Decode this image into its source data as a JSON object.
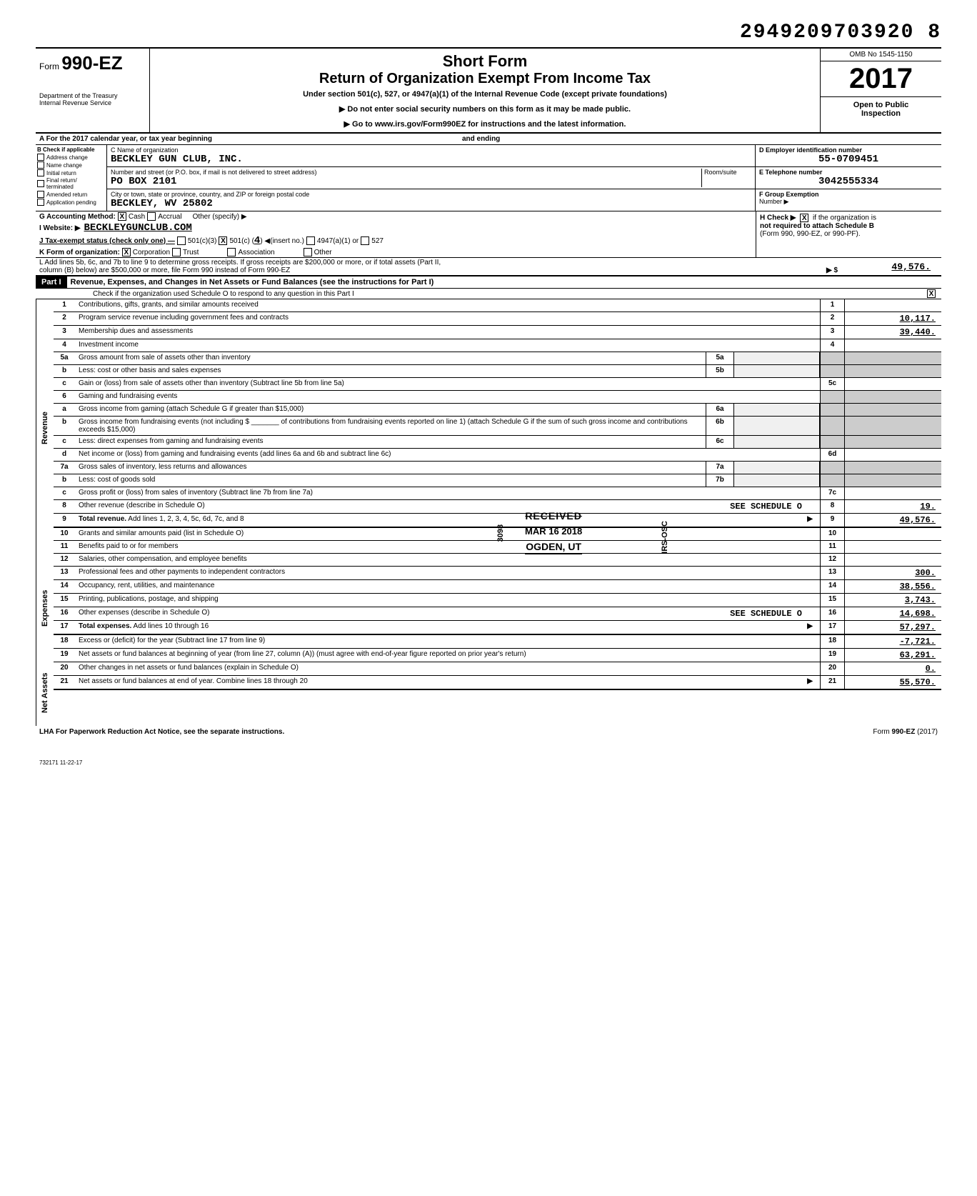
{
  "header": {
    "topNumber": "2949209703920  8",
    "formPrefix": "Form",
    "formNumber": "990-EZ",
    "dept1": "Department of the Treasury",
    "dept2": "Internal Revenue Service",
    "title1": "Short Form",
    "title2": "Return of Organization Exempt From Income Tax",
    "subtitle": "Under section 501(c), 527, or 4947(a)(1) of the Internal Revenue Code (except private foundations)",
    "instr1": "▶ Do not enter social security numbers on this form as it may be made public.",
    "instr2": "▶ Go to www.irs.gov/Form990EZ for instructions and the latest information.",
    "omb": "OMB No 1545-1150",
    "year": "2017",
    "public1": "Open to Public",
    "public2": "Inspection"
  },
  "sectionA": {
    "label": "A  For the 2017 calendar year, or tax year beginning",
    "ending": "and ending"
  },
  "sectionB": {
    "header": "B  Check if applicable",
    "items": [
      "Address change",
      "Name change",
      "Initial return",
      "Final return/ terminated",
      "Amended return",
      "Application pending"
    ]
  },
  "sectionC": {
    "nameLabel": "C Name of organization",
    "name": "BECKLEY GUN CLUB, INC.",
    "streetLabel": "Number and street (or P.O. box, if mail is not delivered to street address)",
    "roomLabel": "Room/suite",
    "street": "PO BOX 2101",
    "cityLabel": "City or town, state or province, country, and ZIP or foreign postal code",
    "city": "BECKLEY, WV  25802"
  },
  "sectionD": {
    "einLabel": "D Employer identification number",
    "ein": "55-0709451",
    "phoneLabel": "E Telephone number",
    "phone": "3042555334",
    "groupLabel": "F Group Exemption",
    "numberLabel": "Number ▶"
  },
  "lineG": {
    "label": "G  Accounting Method:",
    "cash": "Cash",
    "accrual": "Accrual",
    "other": "Other (specify) ▶"
  },
  "lineH": {
    "label": "H Check ▶",
    "text1": "if the organization is",
    "text2": "not required to attach Schedule B",
    "text3": "(Form 990, 990-EZ, or 990-PF)."
  },
  "lineI": {
    "label": "I   Website: ▶",
    "value": "BECKLEYGUNCLUB.COM"
  },
  "lineJ": {
    "label": "J   Tax-exempt status (check only one) —",
    "opt1": "501(c)(3)",
    "opt2": "501(c) (",
    "insertNum": "4",
    "insert": ") ◀(insert no.)",
    "opt3": "4947(a)(1) or",
    "opt4": "527"
  },
  "lineK": {
    "label": "K  Form of organization:",
    "corp": "Corporation",
    "trust": "Trust",
    "assoc": "Association",
    "other": "Other"
  },
  "lineL": {
    "text": "L  Add lines 5b, 6c, and 7b to line 9 to determine gross receipts. If gross receipts are $200,000 or more, or if total assets (Part II,",
    "text2": "column (B) below) are $500,000 or more, file Form 990 instead of Form 990-EZ",
    "arrow": "▶ $",
    "amount": "49,576."
  },
  "partI": {
    "label": "Part I",
    "title": "Revenue, Expenses, and Changes in Net Assets or Fund Balances (see the instructions for Part I)",
    "check": "Check if the organization used Schedule O to respond to any question in this Part I"
  },
  "revenue": {
    "sideLabel": "Revenue",
    "lines": [
      {
        "num": "1",
        "desc": "Contributions, gifts, grants, and similar amounts received",
        "box": "1",
        "val": ""
      },
      {
        "num": "2",
        "desc": "Program service revenue including government fees and contracts",
        "box": "2",
        "val": "10,117."
      },
      {
        "num": "3",
        "desc": "Membership dues and assessments",
        "box": "3",
        "val": "39,440."
      },
      {
        "num": "4",
        "desc": "Investment income",
        "box": "4",
        "val": ""
      },
      {
        "num": "5a",
        "desc": "Gross amount from sale of assets other than inventory",
        "mid": "5a"
      },
      {
        "num": "b",
        "desc": "Less: cost or other basis and sales expenses",
        "mid": "5b"
      },
      {
        "num": "c",
        "desc": "Gain or (loss) from sale of assets other than inventory (Subtract line 5b from line 5a)",
        "box": "5c",
        "val": ""
      },
      {
        "num": "6",
        "desc": "Gaming and fundraising events"
      },
      {
        "num": "a",
        "desc": "Gross income from gaming (attach Schedule G if greater than $15,000)",
        "mid": "6a"
      },
      {
        "num": "b",
        "desc": "Gross income from fundraising events (not including $ _______ of contributions from fundraising events reported on line 1) (attach Schedule G if the sum of such gross income and contributions exceeds $15,000)",
        "mid": "6b"
      },
      {
        "num": "c",
        "desc": "Less: direct expenses from gaming and fundraising events",
        "mid": "6c"
      },
      {
        "num": "d",
        "desc": "Net income or (loss) from gaming and fundraising events (add lines 6a and 6b and subtract line 6c)",
        "box": "6d",
        "val": ""
      },
      {
        "num": "7a",
        "desc": "Gross sales of inventory, less returns and allowances",
        "mid": "7a"
      },
      {
        "num": "b",
        "desc": "Less: cost of goods sold",
        "mid": "7b"
      },
      {
        "num": "c",
        "desc": "Gross profit or (loss) from sales of inventory (Subtract line 7b from line 7a)",
        "box": "7c",
        "val": ""
      },
      {
        "num": "8",
        "desc": "Other revenue (describe in Schedule O)",
        "extra": "SEE SCHEDULE O",
        "box": "8",
        "val": "19."
      },
      {
        "num": "9",
        "desc": "Total revenue. Add lines 1, 2, 3, 4, 5c, 6d, 7c, and 8",
        "arrow": "▶",
        "box": "9",
        "val": "49,576.",
        "bold": true
      }
    ]
  },
  "expenses": {
    "sideLabel": "Expenses",
    "lines": [
      {
        "num": "10",
        "desc": "Grants and similar amounts paid (list in Schedule O)",
        "box": "10",
        "val": ""
      },
      {
        "num": "11",
        "desc": "Benefits paid to or for members",
        "box": "11",
        "val": ""
      },
      {
        "num": "12",
        "desc": "Salaries, other compensation, and employee benefits",
        "box": "12",
        "val": ""
      },
      {
        "num": "13",
        "desc": "Professional fees and other payments to independent contractors",
        "box": "13",
        "val": "300."
      },
      {
        "num": "14",
        "desc": "Occupancy, rent, utilities, and maintenance",
        "box": "14",
        "val": "38,556."
      },
      {
        "num": "15",
        "desc": "Printing, publications, postage, and shipping",
        "box": "15",
        "val": "3,743."
      },
      {
        "num": "16",
        "desc": "Other expenses (describe in Schedule O)",
        "extra": "SEE SCHEDULE O",
        "box": "16",
        "val": "14,698."
      },
      {
        "num": "17",
        "desc": "Total expenses. Add lines 10 through 16",
        "arrow": "▶",
        "box": "17",
        "val": "57,297.",
        "bold": true
      }
    ]
  },
  "netassets": {
    "sideLabel": "Net Assets",
    "lines": [
      {
        "num": "18",
        "desc": "Excess or (deficit) for the year (Subtract line 17 from line 9)",
        "box": "18",
        "val": "-7,721."
      },
      {
        "num": "19",
        "desc": "Net assets or fund balances at beginning of year (from line 27, column (A)) (must agree with end-of-year figure reported on prior year's return)",
        "box": "19",
        "val": "63,291."
      },
      {
        "num": "20",
        "desc": "Other changes in net assets or fund balances (explain in Schedule O)",
        "box": "20",
        "val": "0."
      },
      {
        "num": "21",
        "desc": "Net assets or fund balances at end of year. Combine lines 18 through 20",
        "arrow": "▶",
        "box": "21",
        "val": "55,570."
      }
    ]
  },
  "stamp": {
    "received": "RECEIVED",
    "date": "MAR 16 2018",
    "location": "OGDEN, UT",
    "irsosc": "IRS-OSC",
    "code": "3098"
  },
  "footer": {
    "lha": "LHA  For Paperwork Reduction Act Notice, see the separate instructions.",
    "formRef": "Form 990-EZ (2017)",
    "code": "732171  11-22-17"
  }
}
